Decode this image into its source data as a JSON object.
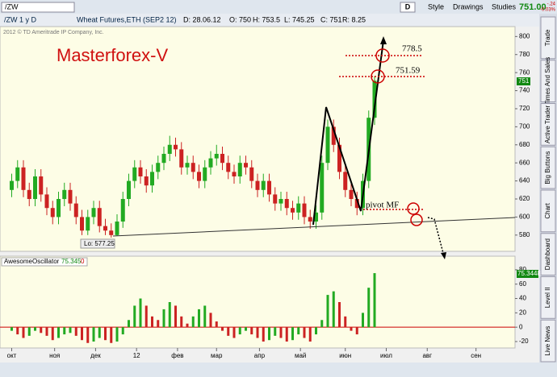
{
  "toolbar": {
    "symbol": "/ZW",
    "aggregation": "D",
    "buttons": [
      "Style",
      "Drawings",
      "Studies"
    ],
    "last": "751.00",
    "change": "-.24",
    "change_pct": "-0.03%"
  },
  "info_bar": {
    "symbol": "/ZW 1 y D",
    "description": "Wheat Futures,ETH (SEP2 12)",
    "fields": [
      "D: 28.06.12",
      "O: 750",
      "H: 753.5",
      "L: 745.25",
      "C: 751",
      "R: 8.25"
    ]
  },
  "copyright": "2012 © TD Ameritrade IP Company, Inc.",
  "side_tabs": [
    "Trade",
    "Times And Sales",
    "Active Trader",
    "Big Buttons",
    "Chart",
    "Dashboard",
    "Level II",
    "Live News"
  ],
  "chart_data": [
    {
      "type": "candlestick",
      "title": "Masterforex-V",
      "up_color": "#22aa22",
      "down_color": "#cc2222",
      "x": [
        0,
        3,
        6,
        9,
        12,
        15,
        18,
        21,
        24,
        27,
        30,
        33,
        36,
        39,
        42,
        45,
        48,
        51,
        54,
        57,
        60,
        63,
        66,
        69,
        72,
        75,
        78,
        81,
        84,
        87,
        90,
        93,
        96,
        99,
        102,
        105,
        108,
        111,
        114,
        117,
        120,
        123,
        126,
        129,
        132,
        135,
        138,
        141,
        144,
        147,
        150,
        153,
        156,
        159,
        162,
        165,
        168,
        171,
        174,
        177,
        180,
        183,
        186
      ],
      "open": [
        630,
        640,
        655,
        630,
        620,
        645,
        625,
        610,
        600,
        620,
        630,
        615,
        600,
        585,
        600,
        610,
        590,
        585,
        580,
        595,
        620,
        640,
        655,
        645,
        635,
        650,
        660,
        670,
        680,
        675,
        655,
        660,
        650,
        640,
        655,
        665,
        670,
        660,
        650,
        645,
        660,
        655,
        640,
        630,
        640,
        625,
        615,
        620,
        610,
        605,
        615,
        600,
        595,
        605,
        660,
        700,
        680,
        650,
        630,
        620,
        610,
        640,
        710
      ],
      "high": [
        648,
        663,
        663,
        638,
        653,
        653,
        633,
        618,
        628,
        638,
        638,
        623,
        608,
        608,
        618,
        618,
        598,
        593,
        603,
        628,
        648,
        663,
        663,
        653,
        658,
        668,
        678,
        690,
        688,
        683,
        668,
        668,
        658,
        663,
        673,
        680,
        678,
        668,
        658,
        668,
        668,
        663,
        648,
        648,
        648,
        633,
        628,
        628,
        618,
        623,
        623,
        608,
        613,
        668,
        708,
        708,
        688,
        658,
        638,
        628,
        648,
        718,
        756
      ],
      "low": [
        622,
        632,
        622,
        612,
        612,
        617,
        602,
        592,
        592,
        612,
        607,
        592,
        580,
        580,
        592,
        583,
        580,
        577.25,
        579,
        588,
        612,
        632,
        637,
        627,
        627,
        642,
        652,
        662,
        667,
        647,
        647,
        642,
        632,
        632,
        647,
        657,
        652,
        642,
        637,
        637,
        647,
        632,
        622,
        622,
        617,
        607,
        607,
        602,
        597,
        597,
        592,
        587,
        587,
        597,
        652,
        672,
        642,
        622,
        612,
        602,
        602,
        632,
        702
      ],
      "close": [
        640,
        655,
        630,
        620,
        645,
        625,
        610,
        600,
        620,
        630,
        615,
        600,
        585,
        600,
        610,
        590,
        585,
        580,
        595,
        620,
        640,
        655,
        645,
        635,
        650,
        660,
        670,
        680,
        675,
        655,
        660,
        650,
        640,
        655,
        665,
        670,
        660,
        650,
        645,
        660,
        655,
        640,
        630,
        640,
        625,
        615,
        620,
        610,
        605,
        615,
        600,
        595,
        605,
        660,
        700,
        680,
        650,
        630,
        620,
        610,
        640,
        710,
        751
      ],
      "xlim": [
        -6,
        258
      ],
      "xticks": [
        {
          "value": 0,
          "label": "окт"
        },
        {
          "value": 22,
          "label": "ноя"
        },
        {
          "value": 43,
          "label": "дек"
        },
        {
          "value": 64,
          "label": "12"
        },
        {
          "value": 85,
          "label": "фев"
        },
        {
          "value": 105,
          "label": "мар"
        },
        {
          "value": 127,
          "label": "апр"
        },
        {
          "value": 148,
          "label": "май"
        },
        {
          "value": 171,
          "label": "июн"
        },
        {
          "value": 192,
          "label": "июл"
        },
        {
          "value": 213,
          "label": "авг"
        },
        {
          "value": 238,
          "label": "сен"
        }
      ],
      "ylim": [
        562,
        811
      ],
      "yticks": [
        580,
        600,
        620,
        640,
        660,
        680,
        700,
        720,
        740,
        760,
        780,
        800
      ],
      "annotations": [
        "778.5",
        "751.59",
        "pivot MF",
        "Lo: 577.25"
      ],
      "last_label": "751"
    },
    {
      "type": "bar",
      "name": "AwesomeOscillator",
      "value_label": "75.345",
      "extra_label": "0",
      "last_label": "75.3448",
      "up_color": "#22aa22",
      "down_color": "#cc2222",
      "x": [
        0,
        3,
        6,
        9,
        12,
        15,
        18,
        21,
        24,
        27,
        30,
        33,
        36,
        39,
        42,
        45,
        48,
        51,
        54,
        57,
        60,
        63,
        66,
        69,
        72,
        75,
        78,
        81,
        84,
        87,
        90,
        93,
        96,
        99,
        102,
        105,
        108,
        111,
        114,
        117,
        120,
        123,
        126,
        129,
        132,
        135,
        138,
        141,
        144,
        147,
        150,
        153,
        156,
        159,
        162,
        165,
        168,
        171,
        174,
        177,
        180,
        183,
        186
      ],
      "values": [
        -5,
        -10,
        -15,
        -12,
        -5,
        -8,
        -12,
        -18,
        -15,
        -10,
        -8,
        -12,
        -18,
        -22,
        -20,
        -15,
        -18,
        -22,
        -20,
        -10,
        10,
        30,
        40,
        30,
        15,
        10,
        25,
        35,
        30,
        15,
        5,
        15,
        25,
        30,
        20,
        8,
        -5,
        -12,
        -15,
        -10,
        -5,
        -10,
        -15,
        -20,
        -18,
        -12,
        -15,
        -20,
        -18,
        -10,
        -15,
        -20,
        -10,
        10,
        45,
        50,
        35,
        15,
        -5,
        -10,
        20,
        55,
        75.345
      ],
      "xlim": [
        -6,
        258
      ],
      "ylim": [
        -29,
        99
      ],
      "yticks": [
        -20,
        0,
        20,
        40,
        60,
        80
      ]
    }
  ]
}
